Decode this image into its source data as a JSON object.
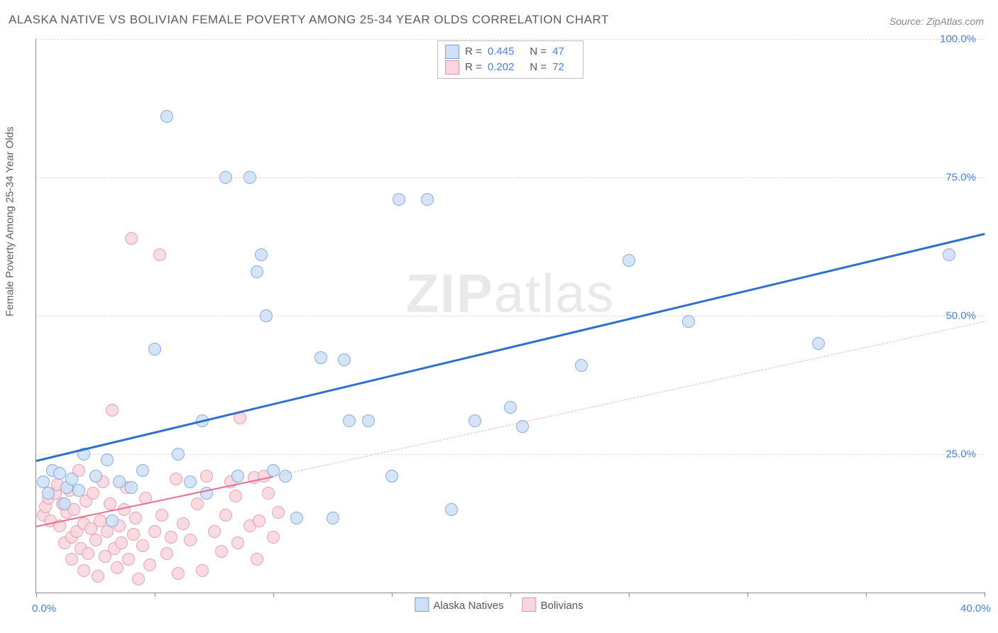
{
  "title": "ALASKA NATIVE VS BOLIVIAN FEMALE POVERTY AMONG 25-34 YEAR OLDS CORRELATION CHART",
  "source": "Source: ZipAtlas.com",
  "ylabel": "Female Poverty Among 25-34 Year Olds",
  "watermark_bold": "ZIP",
  "watermark_rest": "atlas",
  "chart": {
    "type": "scatter",
    "xlim": [
      0,
      40
    ],
    "ylim": [
      0,
      100
    ],
    "x_ticks": [
      0,
      5,
      10,
      15,
      20,
      25,
      30,
      35,
      40
    ],
    "x_tick_labels": {
      "0": "0.0%",
      "40": "40.0%"
    },
    "y_grid": [
      25,
      50,
      75,
      100
    ],
    "y_grid_labels": {
      "25": "25.0%",
      "50": "50.0%",
      "75": "75.0%",
      "100": "100.0%"
    },
    "background_color": "#ffffff",
    "grid_color": "#dcdcdc",
    "axis_color": "#888888",
    "axis_label_color": "#4a80d8",
    "point_radius": 8,
    "series": [
      {
        "name": "Alaska Natives",
        "key": "alaska",
        "color_fill": "#cfe0f7",
        "color_stroke": "#6ea0e0",
        "R": "0.445",
        "N": "47",
        "trend": {
          "x1": 0,
          "y1": 24,
          "x2": 40,
          "y2": 65,
          "width": 3,
          "dash": "none",
          "color": "#2f6fd0"
        },
        "points": [
          [
            0.3,
            20
          ],
          [
            0.5,
            18
          ],
          [
            0.7,
            22
          ],
          [
            1.0,
            21.5
          ],
          [
            1.2,
            16
          ],
          [
            1.3,
            19
          ],
          [
            1.5,
            20.5
          ],
          [
            1.8,
            18.5
          ],
          [
            2.0,
            25
          ],
          [
            2.5,
            21
          ],
          [
            3.0,
            24
          ],
          [
            3.2,
            13
          ],
          [
            3.5,
            20
          ],
          [
            4.0,
            19
          ],
          [
            4.5,
            22
          ],
          [
            5.0,
            44
          ],
          [
            5.5,
            86
          ],
          [
            6.0,
            25
          ],
          [
            6.5,
            20
          ],
          [
            7.0,
            31
          ],
          [
            7.2,
            18
          ],
          [
            8.0,
            75
          ],
          [
            8.5,
            21
          ],
          [
            9.0,
            75
          ],
          [
            9.3,
            58
          ],
          [
            9.5,
            61
          ],
          [
            9.7,
            50
          ],
          [
            10.0,
            22
          ],
          [
            10.5,
            21
          ],
          [
            11.0,
            13.5
          ],
          [
            12.0,
            42.5
          ],
          [
            12.5,
            13.5
          ],
          [
            13.0,
            42
          ],
          [
            13.2,
            31
          ],
          [
            14.0,
            31
          ],
          [
            15.0,
            21
          ],
          [
            15.3,
            71
          ],
          [
            16.5,
            71
          ],
          [
            17.5,
            15
          ],
          [
            18.5,
            31
          ],
          [
            20.0,
            33.5
          ],
          [
            20.5,
            30
          ],
          [
            23.0,
            41
          ],
          [
            25.0,
            60
          ],
          [
            27.5,
            49
          ],
          [
            33.0,
            45
          ],
          [
            38.5,
            61
          ]
        ]
      },
      {
        "name": "Bolivians",
        "key": "bolivia",
        "color_fill": "#f9d6de",
        "color_stroke": "#e890a6",
        "R": "0.202",
        "N": "72",
        "trend_solid": {
          "x1": 0,
          "y1": 12,
          "x2": 10,
          "y2": 21,
          "width": 2.5,
          "color": "#e86f8f"
        },
        "trend_dash": {
          "x1": 10,
          "y1": 21,
          "x2": 40,
          "y2": 49,
          "width": 1.2,
          "color": "#f3b4c2"
        },
        "points": [
          [
            0.3,
            14
          ],
          [
            0.4,
            15.5
          ],
          [
            0.5,
            17
          ],
          [
            0.6,
            13
          ],
          [
            0.8,
            18
          ],
          [
            0.9,
            19.5
          ],
          [
            1.0,
            12
          ],
          [
            1.1,
            16
          ],
          [
            1.2,
            9
          ],
          [
            1.3,
            14.5
          ],
          [
            1.4,
            18.5
          ],
          [
            1.5,
            6
          ],
          [
            1.5,
            10
          ],
          [
            1.6,
            15
          ],
          [
            1.7,
            11
          ],
          [
            1.8,
            22
          ],
          [
            1.9,
            8
          ],
          [
            2.0,
            4
          ],
          [
            2.0,
            12.5
          ],
          [
            2.1,
            16.5
          ],
          [
            2.2,
            7
          ],
          [
            2.3,
            11.5
          ],
          [
            2.4,
            18
          ],
          [
            2.5,
            9.5
          ],
          [
            2.6,
            3
          ],
          [
            2.7,
            13
          ],
          [
            2.8,
            20
          ],
          [
            2.9,
            6.5
          ],
          [
            3.0,
            11
          ],
          [
            3.1,
            16
          ],
          [
            3.2,
            33
          ],
          [
            3.3,
            8
          ],
          [
            3.4,
            4.5
          ],
          [
            3.5,
            12
          ],
          [
            3.6,
            9
          ],
          [
            3.7,
            15
          ],
          [
            3.8,
            19
          ],
          [
            3.9,
            6
          ],
          [
            4.0,
            64
          ],
          [
            4.1,
            10.5
          ],
          [
            4.2,
            13.5
          ],
          [
            4.3,
            2.5
          ],
          [
            4.5,
            8.5
          ],
          [
            4.6,
            17
          ],
          [
            4.8,
            5
          ],
          [
            5.0,
            11
          ],
          [
            5.2,
            61
          ],
          [
            5.3,
            14
          ],
          [
            5.5,
            7
          ],
          [
            5.7,
            10
          ],
          [
            5.9,
            20.5
          ],
          [
            6.0,
            3.5
          ],
          [
            6.2,
            12.5
          ],
          [
            6.5,
            9.5
          ],
          [
            6.8,
            16
          ],
          [
            7.0,
            4
          ],
          [
            7.2,
            21
          ],
          [
            7.5,
            11
          ],
          [
            7.8,
            7.5
          ],
          [
            8.0,
            14
          ],
          [
            8.2,
            20
          ],
          [
            8.4,
            17.5
          ],
          [
            8.5,
            9
          ],
          [
            8.6,
            31.5
          ],
          [
            9.0,
            12
          ],
          [
            9.2,
            20.8
          ],
          [
            9.3,
            6
          ],
          [
            9.4,
            13
          ],
          [
            9.6,
            21
          ],
          [
            9.8,
            18
          ],
          [
            10.0,
            10
          ],
          [
            10.2,
            14.5
          ]
        ]
      }
    ]
  },
  "legend_bottom": [
    {
      "label": "Alaska Natives",
      "fill": "#cfe0f7",
      "stroke": "#6ea0e0"
    },
    {
      "label": "Bolivians",
      "fill": "#f9d6de",
      "stroke": "#e890a6"
    }
  ]
}
